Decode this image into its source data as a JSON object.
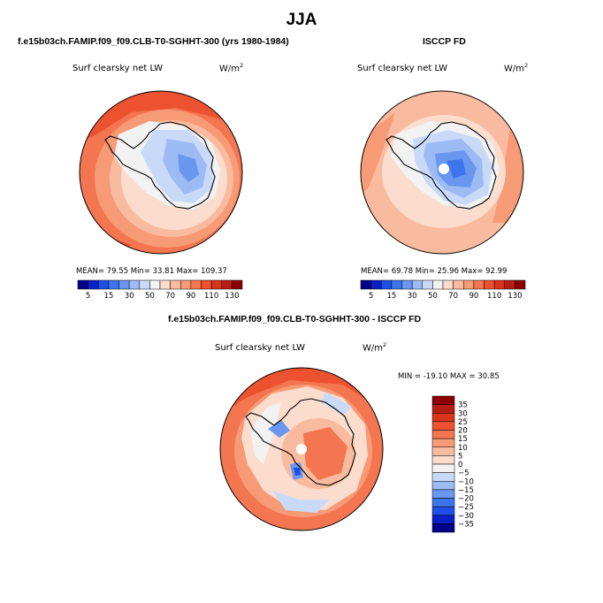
{
  "page": {
    "title": "JJA"
  },
  "panels": [
    {
      "case_label": "f.e15b03ch.FAMIP.f09_f09.CLB-T0-SGHHT-300 (yrs 1980-1984)",
      "variable": "Surf clearsky net LW",
      "units": "W/m",
      "units_exp": "2",
      "stats": "MEAN=   79.55   Min=   33.81   Max=  109.37"
    },
    {
      "case_label": "ISCCP FD",
      "variable": "Surf clearsky net LW",
      "units": "W/m",
      "units_exp": "2",
      "stats": "MEAN=   69.78   Min=   25.96   Max=   92.99"
    },
    {
      "case_label": "f.e15b03ch.FAMIP.f09_f09.CLB-T0-SGHHT-300 - ISCCP FD",
      "variable": "Surf clearsky net LW",
      "units": "W/m",
      "units_exp": "2",
      "stats": "MIN = -19.10  MAX =  30.85"
    }
  ],
  "chart_data": [
    {
      "type": "heatmap",
      "projection": "polar-stereographic-south",
      "title": "Surf clearsky net LW",
      "units": "W/m2",
      "stats": {
        "mean": 79.55,
        "min": 33.81,
        "max": 109.37
      },
      "colorbar": {
        "orientation": "horizontal",
        "levels": [
          5,
          10,
          15,
          20,
          30,
          40,
          50,
          60,
          70,
          80,
          90,
          100,
          110,
          120,
          130
        ],
        "tick_labels": [
          "5",
          "15",
          "30",
          "50",
          "70",
          "90",
          "110",
          "130"
        ],
        "colors": [
          "#00008b",
          "#0a1fc4",
          "#1f4fe6",
          "#3d76ec",
          "#6996ef",
          "#9cbaf4",
          "#c9daf8",
          "#f2f2f2",
          "#fbdccd",
          "#f9bb9f",
          "#f79a76",
          "#f47650",
          "#ec5230",
          "#d9341d",
          "#b51e12",
          "#8b0000"
        ]
      }
    },
    {
      "type": "heatmap",
      "projection": "polar-stereographic-south",
      "title": "Surf clearsky net LW",
      "units": "W/m2",
      "stats": {
        "mean": 69.78,
        "min": 25.96,
        "max": 92.99
      },
      "colorbar": {
        "orientation": "horizontal",
        "levels": [
          5,
          10,
          15,
          20,
          30,
          40,
          50,
          60,
          70,
          80,
          90,
          100,
          110,
          120,
          130
        ],
        "tick_labels": [
          "5",
          "15",
          "30",
          "50",
          "70",
          "90",
          "110",
          "130"
        ],
        "colors": [
          "#00008b",
          "#0a1fc4",
          "#1f4fe6",
          "#3d76ec",
          "#6996ef",
          "#9cbaf4",
          "#c9daf8",
          "#f2f2f2",
          "#fbdccd",
          "#f9bb9f",
          "#f79a76",
          "#f47650",
          "#ec5230",
          "#d9341d",
          "#b51e12",
          "#8b0000"
        ]
      }
    },
    {
      "type": "heatmap",
      "projection": "polar-stereographic-south",
      "title": "Surf clearsky net LW",
      "units": "W/m2",
      "stats": {
        "min": -19.1,
        "max": 30.85
      },
      "colorbar": {
        "orientation": "vertical",
        "tick_labels": [
          "35",
          "30",
          "25",
          "20",
          "15",
          "10",
          "5",
          "0",
          "−5",
          "−10",
          "−15",
          "−20",
          "−25",
          "−30",
          "−35"
        ],
        "colors": [
          "#8b0000",
          "#b51e12",
          "#d9341d",
          "#ec5230",
          "#f47650",
          "#f79a76",
          "#f9bb9f",
          "#fbdccd",
          "#f2f2f2",
          "#c9daf8",
          "#9cbaf4",
          "#6996ef",
          "#3d76ec",
          "#1f4fe6",
          "#0a1fc4",
          "#00008b"
        ]
      }
    }
  ]
}
